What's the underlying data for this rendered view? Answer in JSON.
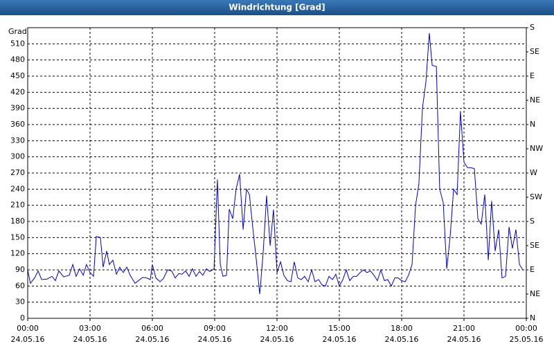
{
  "chart_data": {
    "type": "line",
    "title": "Windrichtung [Grad]",
    "y_label": "Grad",
    "color": "#0000cc",
    "grid": true,
    "xlim": [
      0,
      24
    ],
    "xticks": [
      {
        "value": 0,
        "label": [
          "00:00",
          "24.05.16"
        ]
      },
      {
        "value": 3,
        "label": [
          "03:00",
          "24.05.16"
        ]
      },
      {
        "value": 6,
        "label": [
          "06:00",
          "24.05.16"
        ]
      },
      {
        "value": 9,
        "label": [
          "09:00",
          "24.05.16"
        ]
      },
      {
        "value": 12,
        "label": [
          "12:00",
          "24.05.16"
        ]
      },
      {
        "value": 15,
        "label": [
          "15:00",
          "24.05.16"
        ]
      },
      {
        "value": 18,
        "label": [
          "18:00",
          "24.05.16"
        ]
      },
      {
        "value": 21,
        "label": [
          "21:00",
          "24.05.16"
        ]
      },
      {
        "value": 24,
        "label": [
          "00:00",
          "25.05.16"
        ]
      }
    ],
    "ylim": [
      0,
      540
    ],
    "yticks": [
      0,
      30,
      60,
      90,
      120,
      150,
      180,
      210,
      240,
      270,
      300,
      330,
      360,
      390,
      420,
      450,
      480,
      510
    ],
    "y2lim": [
      0,
      540
    ],
    "y2ticks": [
      {
        "value": 0,
        "label": "N"
      },
      {
        "value": 45,
        "label": "NE"
      },
      {
        "value": 90,
        "label": "E"
      },
      {
        "value": 135,
        "label": "SE"
      },
      {
        "value": 180,
        "label": "S"
      },
      {
        "value": 225,
        "label": "SW"
      },
      {
        "value": 270,
        "label": "W"
      },
      {
        "value": 315,
        "label": "NW"
      },
      {
        "value": 360,
        "label": "N"
      },
      {
        "value": 405,
        "label": "NE"
      },
      {
        "value": 450,
        "label": "E"
      },
      {
        "value": 495,
        "label": "SE"
      },
      {
        "value": 540,
        "label": "S"
      }
    ],
    "x": [
      0,
      0.13,
      0.33,
      0.5,
      0.67,
      0.93,
      1.17,
      1.33,
      1.5,
      1.73,
      2,
      2.17,
      2.33,
      2.5,
      2.67,
      2.83,
      3,
      3.17,
      3.3,
      3.5,
      3.63,
      3.8,
      3.93,
      4.1,
      4.27,
      4.43,
      4.6,
      4.77,
      4.93,
      5.17,
      5.33,
      5.53,
      5.73,
      5.9,
      6,
      6.17,
      6.37,
      6.53,
      6.73,
      6.93,
      7.1,
      7.27,
      7.43,
      7.6,
      7.77,
      7.93,
      8.1,
      8.27,
      8.43,
      8.6,
      8.77,
      8.97,
      9.13,
      9.27,
      9.4,
      9.57,
      9.7,
      9.87,
      10.03,
      10.2,
      10.37,
      10.53,
      10.67,
      10.83,
      11,
      11.17,
      11.33,
      11.5,
      11.67,
      11.83,
      12,
      12.17,
      12.33,
      12.5,
      12.67,
      12.83,
      13,
      13.17,
      13.33,
      13.5,
      13.67,
      13.83,
      14,
      14.17,
      14.33,
      14.5,
      14.67,
      14.83,
      15,
      15.17,
      15.33,
      15.5,
      15.67,
      15.83,
      16,
      16.17,
      16.33,
      16.5,
      16.67,
      16.83,
      17,
      17.17,
      17.33,
      17.5,
      17.67,
      17.83,
      18,
      18.17,
      18.33,
      18.5,
      18.67,
      18.83,
      19,
      19.17,
      19.33,
      19.47,
      19.67,
      19.83,
      20,
      20.17,
      20.33,
      20.5,
      20.67,
      20.83,
      21,
      21.17,
      21.33,
      21.5,
      21.67,
      21.83,
      22,
      22.17,
      22.33,
      22.5,
      22.67,
      22.83,
      23,
      23.17,
      23.33,
      23.5,
      23.67,
      23.83
    ],
    "values": [
      90,
      65,
      75,
      88,
      72,
      73,
      78,
      70,
      88,
      77,
      80,
      100,
      78,
      92,
      80,
      100,
      85,
      78,
      152,
      150,
      95,
      125,
      100,
      108,
      82,
      95,
      85,
      95,
      80,
      65,
      70,
      76,
      75,
      72,
      100,
      75,
      68,
      74,
      90,
      88,
      75,
      83,
      82,
      88,
      78,
      92,
      78,
      87,
      80,
      92,
      87,
      92,
      258,
      100,
      78,
      80,
      203,
      185,
      240,
      268,
      165,
      240,
      230,
      170,
      110,
      45,
      120,
      228,
      135,
      202,
      85,
      105,
      80,
      70,
      68,
      105,
      75,
      72,
      78,
      68,
      90,
      68,
      72,
      62,
      60,
      78,
      72,
      82,
      60,
      72,
      90,
      70,
      78,
      78,
      85,
      90,
      85,
      88,
      80,
      70,
      90,
      70,
      72,
      60,
      75,
      75,
      70,
      68,
      80,
      100,
      210,
      250,
      390,
      440,
      530,
      470,
      468,
      240,
      215,
      92,
      150,
      240,
      230,
      385,
      290,
      280,
      280,
      278,
      185,
      175,
      230,
      108,
      218,
      125,
      165,
      75,
      78,
      170,
      130,
      165,
      100,
      90
    ]
  }
}
